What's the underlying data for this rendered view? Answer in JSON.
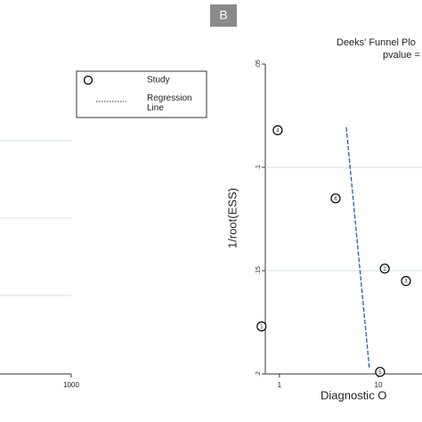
{
  "panel_label": "B",
  "chart_data": [
    {
      "type": "line",
      "xticks": [
        1000
      ]
    },
    {
      "type": "scatter",
      "title": "Deeks' Funnel Plo",
      "subtitle": "pvalue =",
      "x_label": "Diagnostic O",
      "y_label": "1/root(ESS)",
      "xscale": "log",
      "xlim": [
        0.72,
        27.6
      ],
      "ylim": [
        0.05,
        0.2
      ],
      "xticks": [
        1,
        10
      ],
      "yticks": [
        {
          "value": 0.05,
          "label": ".05"
        },
        {
          "value": 0.1,
          "label": ".1"
        },
        {
          "value": 0.15,
          "label": ".15"
        },
        {
          "value": 0.2,
          "label": ".2"
        }
      ],
      "grid": true,
      "series": [
        {
          "name": "Study",
          "color": "#000000",
          "x": [
            0.96,
            3.7,
            11.6,
            19,
            0.66,
            10.4
          ],
          "values": [
            0.082,
            0.115,
            0.149,
            0.155,
            0.177,
            0.199
          ],
          "value_labels": [
            "4",
            "6",
            "2",
            "3",
            "1",
            "5"
          ]
        },
        {
          "name": "Regression Line",
          "color": "#2a5d9f",
          "x": [
            4.74,
            8.1
          ],
          "values": [
            0.0806,
            0.197
          ]
        }
      ]
    }
  ]
}
